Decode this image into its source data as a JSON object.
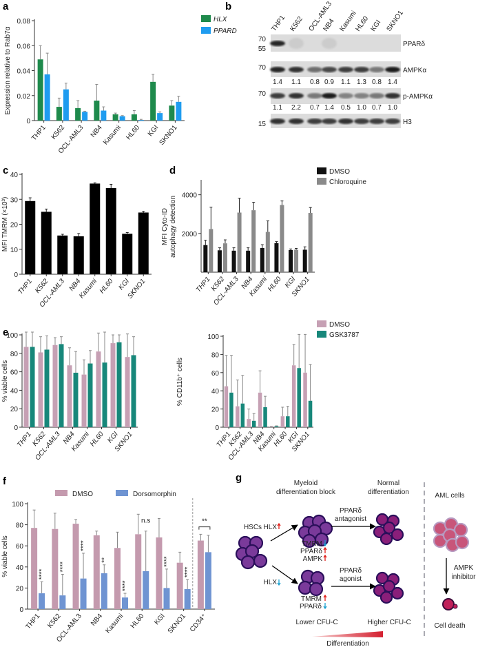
{
  "panels": {
    "a": "a",
    "b": "b",
    "c": "c",
    "d": "d",
    "e": "e",
    "f": "f",
    "g": "g"
  },
  "chart_data": [
    {
      "panel": "a",
      "type": "bar",
      "categories": [
        "THP1",
        "K562",
        "OCL-AML3",
        "NB4",
        "Kasumi",
        "HL60",
        "KGI",
        "SKNO1"
      ],
      "series": [
        {
          "name": "HLX",
          "color": "#1e8a4c",
          "values": [
            0.049,
            0.011,
            0.01,
            0.016,
            0.005,
            0.005,
            0.031,
            0.012
          ],
          "sd": [
            0.011,
            0.007,
            0.006,
            0.013,
            0.001,
            0.003,
            0.006,
            0.004
          ]
        },
        {
          "name": "PPARD",
          "color": "#1f9cf0",
          "values": [
            0.037,
            0.025,
            0.007,
            0.008,
            0.0035,
            0.0005,
            0.006,
            0.015
          ],
          "sd": [
            0.017,
            0.005,
            0.0005,
            0.003,
            0.0005,
            0.0005,
            0.001,
            0.0045
          ]
        }
      ],
      "ylabel": [
        "Expression relative to Rab7α"
      ],
      "ylim": [
        0,
        0.08
      ],
      "yticks": [
        0,
        0.02,
        0.04,
        0.06,
        0.08
      ],
      "ytick_labels": [
        "0",
        "0.02",
        "0.04",
        "0.06",
        "0.08"
      ],
      "legend": "top-right",
      "italic_ticks": false
    },
    {
      "panel": "c",
      "type": "bar",
      "categories": [
        "THP1",
        "K562",
        "OCL-AML3",
        "NB4",
        "Kasumi",
        "HL60",
        "KGI",
        "SKNO1"
      ],
      "series": [
        {
          "name": "MFI TMRM",
          "color": "#000000",
          "values": [
            29.3,
            25.0,
            15.5,
            15.2,
            36.3,
            34.5,
            16.2,
            24.7
          ],
          "sd": [
            1.3,
            1.1,
            0.5,
            1.1,
            0.3,
            1.5,
            0.5,
            0.5
          ]
        }
      ],
      "ylabel": [
        "MFI TMRM (×10³)"
      ],
      "ylim": [
        0,
        40
      ],
      "yticks": [
        0,
        10,
        20,
        30,
        40
      ],
      "ytick_labels": [
        "0",
        "10",
        "20",
        "30",
        "40"
      ],
      "legend": "none",
      "italic_ticks": true
    },
    {
      "panel": "d",
      "type": "bar",
      "categories": [
        "THP1",
        "K562",
        "OCL-AML3",
        "NB4",
        "Kasumi",
        "HL60",
        "KGI",
        "SKNO1"
      ],
      "series": [
        {
          "name": "DMSO",
          "color": "#111111",
          "values": [
            1400,
            1130,
            1110,
            1110,
            1250,
            1500,
            1140,
            1160
          ],
          "sd": [
            250,
            130,
            150,
            150,
            170,
            80,
            60,
            150
          ]
        },
        {
          "name": "Chloroquine",
          "color": "#8a8a8a",
          "values": [
            2230,
            1490,
            3080,
            3200,
            2080,
            3470,
            1160,
            3060
          ],
          "sd": [
            1130,
            180,
            740,
            410,
            570,
            210,
            70,
            280
          ]
        }
      ],
      "ylabel": [
        "MFI Cyto-ID",
        "autophagy detection"
      ],
      "ylim": [
        0,
        4700
      ],
      "yticks": [
        2000,
        4000
      ],
      "ytick_labels": [
        "2000",
        "4000"
      ],
      "legend": "top-right",
      "italic_ticks": true
    },
    {
      "panel": "e-left",
      "type": "bar",
      "categories": [
        "THP1",
        "K562",
        "OCL-AML3",
        "NB4",
        "Kasumi",
        "HL60",
        "KGI",
        "SKNO1"
      ],
      "series": [
        {
          "name": "DMSO",
          "color": "#c6a0b4",
          "values": [
            87,
            81,
            89,
            67,
            57,
            82,
            91,
            76
          ],
          "sd": [
            16,
            17,
            8,
            19,
            16,
            20,
            9,
            25
          ]
        },
        {
          "name": "GSK3787",
          "color": "#17877a",
          "values": [
            87,
            84,
            90,
            59,
            69,
            70,
            92,
            78
          ],
          "sd": [
            16,
            15,
            8,
            23,
            14,
            33,
            8,
            20
          ]
        }
      ],
      "ylabel": [
        "% viable cells"
      ],
      "ylim": [
        0,
        100
      ],
      "yticks": [
        0,
        20,
        40,
        60,
        80,
        100
      ],
      "ytick_labels": [
        "0",
        "20",
        "40",
        "60",
        "80",
        "100"
      ],
      "legend": "none",
      "italic_ticks": true
    },
    {
      "panel": "e-right",
      "type": "bar",
      "categories": [
        "THP1",
        "K562",
        "OCL-AML3",
        "NB4",
        "Kasumi",
        "HL60",
        "KGI",
        "SKNO1"
      ],
      "series": [
        {
          "name": "DMSO",
          "color": "#c6a0b4",
          "values": [
            45,
            23,
            9,
            38,
            0.5,
            12,
            68,
            60
          ],
          "sd": [
            34,
            29,
            11,
            24,
            0.5,
            10,
            23,
            42
          ]
        },
        {
          "name": "GSK3787",
          "color": "#17877a",
          "values": [
            38,
            26,
            7,
            22,
            1,
            12,
            65,
            29
          ],
          "sd": [
            41,
            31,
            8,
            12,
            0.5,
            11,
            37,
            40
          ]
        }
      ],
      "ylabel": [
        "% CD11b⁺ cells"
      ],
      "ylim": [
        0,
        100
      ],
      "yticks": [
        0,
        20,
        40,
        60,
        80,
        100
      ],
      "ytick_labels": [
        "0",
        "20",
        "40",
        "60",
        "80",
        "100"
      ],
      "legend": "top-right",
      "italic_ticks": true
    },
    {
      "panel": "f",
      "type": "bar",
      "categories": [
        "THP1",
        "K562",
        "OCL-AML3",
        "NB4",
        "Kasumi",
        "HL60",
        "KGI",
        "SKNO1",
        "CD34⁺"
      ],
      "series": [
        {
          "name": "DMSO",
          "color": "#c49aae",
          "values": [
            77,
            76,
            81,
            70,
            58,
            71,
            68,
            44,
            65
          ],
          "sd": [
            17,
            15,
            4,
            4,
            15,
            19,
            18,
            10,
            6
          ]
        },
        {
          "name": "Dorsomorphin",
          "color": "#6f94d2",
          "values": [
            15,
            13,
            29,
            34,
            11,
            36,
            20,
            19,
            54
          ],
          "sd": [
            11,
            20,
            24,
            8,
            4,
            38,
            18,
            9,
            16
          ]
        }
      ],
      "significance": [
        "****",
        "****",
        "****",
        "**",
        "****",
        "n.s",
        "****",
        "****",
        "**"
      ],
      "ylabel": [
        "% viable cells"
      ],
      "ylim": [
        0,
        100
      ],
      "yticks": [
        0,
        20,
        40,
        60,
        80,
        100
      ],
      "ytick_labels": [
        "0",
        "20",
        "40",
        "60",
        "80",
        "100"
      ],
      "legend": "top",
      "italic_ticks": false
    }
  ],
  "blot": {
    "lanes": [
      "THP1",
      "K562",
      "OCL-AML3",
      "NB4",
      "Kasumi",
      "HL60",
      "KGI",
      "SKNO1"
    ],
    "rows": [
      {
        "label": "PPARδ",
        "markers": [
          "70",
          "55"
        ],
        "band_intensity": [
          0.9,
          0.08,
          0,
          0.08,
          0,
          0,
          0,
          0
        ]
      },
      {
        "label": "AMPKα",
        "markers": [
          "70"
        ],
        "band_intensity": [
          0.9,
          0.85,
          0.55,
          0.75,
          0.8,
          0.8,
          0.5,
          0.95
        ],
        "quant": [
          "1.4",
          "1.1",
          "0.8",
          "0.9",
          "1.1",
          "1.3",
          "0.8",
          "1.4"
        ]
      },
      {
        "label": "p-AMPKα",
        "markers": [
          "70"
        ],
        "band_intensity": [
          0.8,
          0.85,
          0.5,
          0.95,
          0.45,
          0.45,
          0.5,
          0.85
        ],
        "quant": [
          "1.1",
          "2.2",
          "0.7",
          "1.4",
          "0.5",
          "1.0",
          "0.7",
          "1.0"
        ]
      },
      {
        "label": "H3",
        "markers": [
          "15"
        ],
        "band_intensity": [
          0.85,
          0.85,
          0.8,
          0.8,
          0.85,
          0.8,
          0.8,
          0.8
        ]
      }
    ]
  },
  "diagram": {
    "col_myeloid": [
      "Myeloid",
      "differentiation block"
    ],
    "col_normal": [
      "Normal",
      "differentiation"
    ],
    "col_aml": "AML cells",
    "hscs": "HSCs",
    "hlx_up": "HLX",
    "hlx_down": "HLX",
    "top_markers": [
      "TMRM",
      "PPARδ",
      "AMPK"
    ],
    "bottom_markers": [
      "TMRM",
      "PPARδ"
    ],
    "antagonist": [
      "PPARδ",
      "antagonist"
    ],
    "agonist": [
      "PPARδ",
      "agonist"
    ],
    "ampk_inhibitor": [
      "AMPK",
      "inhibitor"
    ],
    "cell_death": "Cell death",
    "lower_cfu": "Lower CFU-C",
    "higher_cfu": "Higher CFU-C",
    "differentiation": "Differentiation",
    "colors": {
      "cell": "#7a3a9a",
      "cell_edge": "#2a0f5a",
      "normal_cell": "#8a1f7a",
      "aml_cell": "#c8557a",
      "up_arrow": "#e0201a",
      "down_arrow": "#1aa0d0"
    }
  }
}
